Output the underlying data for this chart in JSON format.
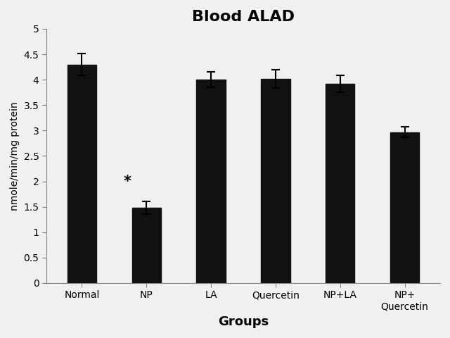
{
  "title": "Blood ALAD",
  "xlabel": "Groups",
  "ylabel": "nmole/min/mg protein",
  "categories": [
    "Normal",
    "NP",
    "LA",
    "Quercetin",
    "NP+LA",
    "NP+\nQuercetin"
  ],
  "values": [
    4.3,
    1.48,
    4.0,
    4.02,
    3.92,
    2.97
  ],
  "errors": [
    0.22,
    0.12,
    0.15,
    0.18,
    0.17,
    0.1
  ],
  "bar_color": "#111111",
  "bar_edgecolor": "#111111",
  "ylim": [
    0,
    5
  ],
  "yticks": [
    0,
    0.5,
    1.0,
    1.5,
    2.0,
    2.5,
    3.0,
    3.5,
    4.0,
    4.5,
    5.0
  ],
  "annotation_bar": 1,
  "annotation_text": "*",
  "background_color": "#f0f0f0",
  "plot_bg_color": "#f0f0f0",
  "title_fontsize": 16,
  "title_fontweight": "bold",
  "xlabel_fontsize": 13,
  "xlabel_fontweight": "bold",
  "ylabel_fontsize": 10,
  "tick_fontsize": 10,
  "bar_width": 0.45,
  "figsize": [
    6.4,
    4.8
  ]
}
